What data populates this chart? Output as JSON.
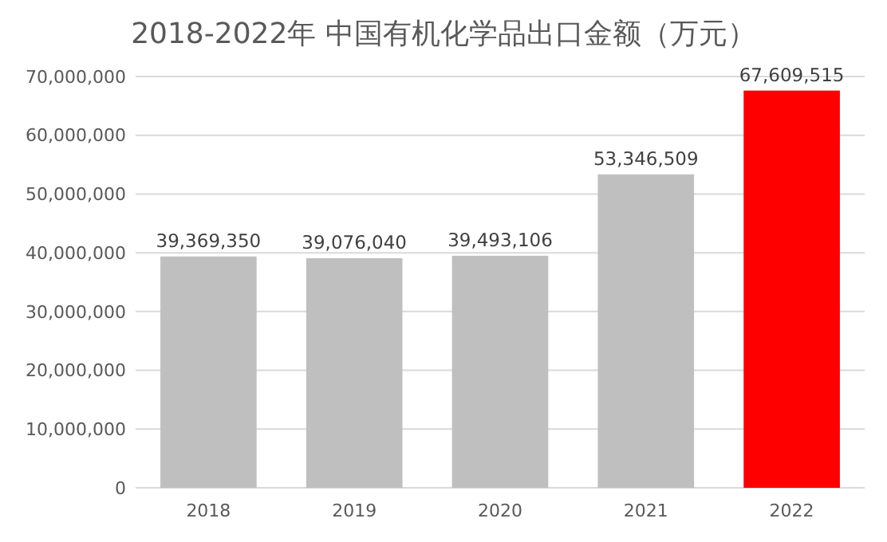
{
  "chart_data": {
    "type": "bar",
    "title": "2018-2022年 中国有机化学品出口金额（万元）",
    "categories": [
      "2018",
      "2019",
      "2020",
      "2021",
      "2022"
    ],
    "values": [
      39369350,
      39076040,
      39493106,
      53346509,
      67609515
    ],
    "colors": [
      "#bfbfbf",
      "#bfbfbf",
      "#bfbfbf",
      "#bfbfbf",
      "#ff0000"
    ],
    "ylim": [
      0,
      70000000
    ],
    "yticks": [
      0,
      {
        "value": 10000000,
        "label": "10,000,000"
      },
      {
        "value": 20000000,
        "label": "20,000,000"
      },
      {
        "value": 30000000,
        "label": "30,000,000"
      },
      {
        "value": 40000000,
        "label": "40,000,000"
      },
      {
        "value": 50000000,
        "label": "50,000,000"
      },
      {
        "value": 60000000,
        "label": "60,000,000"
      },
      {
        "value": 70000000,
        "label": "70,000,000"
      }
    ],
    "value_labels": [
      "39,369,350",
      "39,076,040",
      "39,493,106",
      "53,346,509",
      "67,609,515"
    ],
    "grid": "y"
  }
}
